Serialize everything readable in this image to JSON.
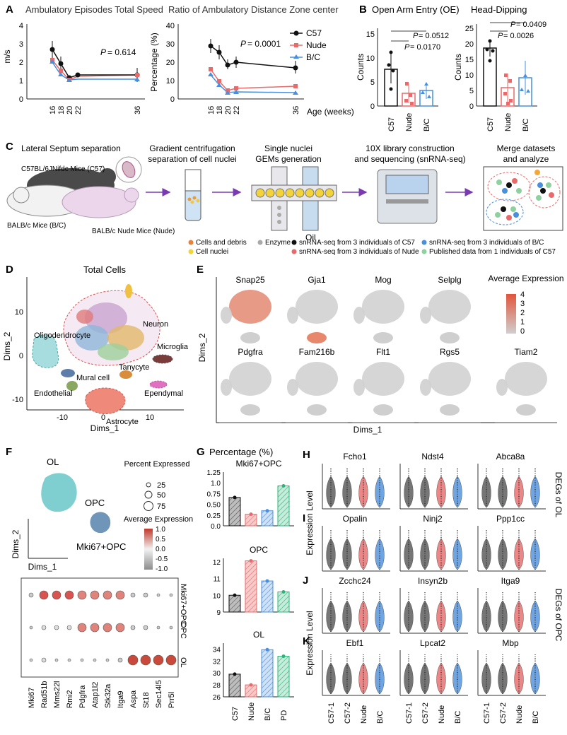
{
  "panels": {
    "A": {
      "letter": "A",
      "speed": {
        "title": "Ambulatory Episodes Total Speed",
        "ylabel": "m/s",
        "y_ticks": [
          "0",
          "1",
          "2",
          "3",
          "4"
        ],
        "x_ticks": [
          "16",
          "18",
          "20",
          "22",
          "36"
        ],
        "pvalue": "= 0.614"
      },
      "ratio": {
        "title": "Ratio of Ambulatory Distance Zone center",
        "ylabel": "Percentage (%)",
        "y_ticks": [
          "0",
          "10",
          "20",
          "30",
          "40"
        ],
        "x_ticks": [
          "16",
          "18",
          "20",
          "22",
          "36"
        ],
        "xlabel": "Age (weeks)",
        "pvalue": "= 0.0001"
      },
      "legend": [
        "C57",
        "Nude",
        "B/C"
      ],
      "p_letter": "P"
    },
    "B": {
      "letter": "B",
      "oe": {
        "title": "Open Arm Entry (OE)",
        "ylabel": "Counts",
        "y_ticks": [
          "0",
          "5",
          "10",
          "15"
        ],
        "categories": [
          "C57",
          "Nude",
          "B/C"
        ],
        "p1": "= 0.0512",
        "p2": "= 0.0170"
      },
      "hd": {
        "title": "Head-Dipping",
        "ylabel": "Counts",
        "y_ticks": [
          "0",
          "5",
          "10",
          "15",
          "20",
          "25"
        ],
        "categories": [
          "C57",
          "Nude",
          "B/C"
        ],
        "p1": "= 0.0409",
        "p2": "= 0.0026"
      }
    },
    "C": {
      "letter": "C",
      "steps": [
        "Lateral Septum separation",
        "Gradient centrifugation",
        "separation of cell nuclei",
        "Single nuclei",
        "GEMs generation",
        "10X library construction",
        "and sequencing (snRNA-seq)",
        "Merge datasets",
        "and analyze"
      ],
      "mice": [
        "C57BL/6JNifdc Mice (C57)",
        "BALB/c Mice (B/C)",
        "BALB/c Nude Mice (Nude)"
      ],
      "oil": "Oil",
      "legend": [
        "Cells and debris",
        "Cell nuclei",
        "Enzyme",
        "snRNA-seq from 3 individuals of C57",
        "snRNA-seq from 3 individuals of Nude",
        "snRNA-seq from 3 individuals of B/C",
        "Published data from 1 individuals of C57"
      ]
    },
    "D": {
      "letter": "D",
      "title": "Total Cells",
      "xlabel": "Dims_1",
      "ylabel": "Dims_2",
      "x_ticks": [
        "-10",
        "0",
        "10"
      ],
      "y_ticks": [
        "10",
        "0",
        "-10"
      ],
      "clusters": [
        "Neuron",
        "Oligodendrocyte",
        "Microglia",
        "Tanycyte",
        "Ependymal",
        "Mural cell",
        "Endothelial",
        "Astrocyte"
      ]
    },
    "E": {
      "letter": "E",
      "genes": [
        "Snap25",
        "Gja1",
        "Mog",
        "Selplg",
        "Pdgfra",
        "Fam216b",
        "Flt1",
        "Rgs5",
        "Tiam2"
      ],
      "legend_title": "Average Expression",
      "legend_ticks": [
        "4",
        "3",
        "2",
        "1",
        "0"
      ],
      "xlabel": "Dims_1",
      "ylabel": "Dims_2"
    },
    "F": {
      "letter": "F",
      "umap_labels": [
        "OL",
        "OPC",
        "Mki67+OPC"
      ],
      "xlabel": "Dims_1",
      "ylabel": "Dims_2",
      "percent_title": "Percent Expressed",
      "percent_ticks": [
        "25",
        "50",
        "75"
      ],
      "avg_title": "Average Expression",
      "avg_ticks": [
        "1.0",
        "0.5",
        "0.0",
        "-0.5",
        "-1.0"
      ],
      "genes": [
        "Mki67",
        "Rad51b",
        "Mms22l",
        "Rmi2",
        "Pdgfra",
        "Atap1l2",
        "Stk32a",
        "Itga9",
        "Aspa",
        "St18",
        "Sec14l5",
        "Prr5l"
      ],
      "rows": [
        "Mki67+OPC",
        "OPC",
        "OL"
      ]
    },
    "G": {
      "letter": "G",
      "title": "Percentage (%)",
      "categories": [
        "C57",
        "Nude",
        "B/C",
        "PD"
      ],
      "subplots": [
        {
          "title": "Mki67+OPC",
          "y_ticks": [
            "0.0",
            "0.25",
            "0.50",
            "0.75",
            "1.0",
            "1.25"
          ],
          "ymin": 0.0,
          "ymax": 1.25,
          "values": [
            0.66,
            0.27,
            0.35,
            0.93
          ]
        },
        {
          "title": "OPC",
          "y_ticks": [
            "9",
            "10",
            "11",
            "12"
          ],
          "ymin": 9,
          "ymax": 12.2,
          "values": [
            10.0,
            12.05,
            10.85,
            10.2
          ]
        },
        {
          "title": "OL",
          "y_ticks": [
            "26",
            "28",
            "30",
            "32",
            "34"
          ],
          "ymin": 26,
          "ymax": 35,
          "values": [
            29.8,
            28.0,
            33.9,
            32.8
          ]
        }
      ]
    },
    "H": {
      "letter": "H",
      "genes": [
        "Fcho1",
        "Ndst4",
        "Abca8a"
      ],
      "side_label": "DEGs of OL"
    },
    "I": {
      "letter": "I",
      "genes": [
        "Opalin",
        "Ninj2",
        "Ppp1cc"
      ]
    },
    "J": {
      "letter": "J",
      "genes": [
        "Zcchc24",
        "Insyn2b",
        "Itga9"
      ],
      "side_label": "DEGs of OPC"
    },
    "K": {
      "letter": "K",
      "genes": [
        "Ebf1",
        "Lpcat2",
        "Mbp"
      ]
    },
    "violin": {
      "ylabel": "Expression Level",
      "categories": [
        "C57-1",
        "C57-2",
        "Nude",
        "B/C"
      ]
    }
  },
  "colors": {
    "c57": "#111111",
    "nude": "#e86a6a",
    "bc": "#4a8fdc",
    "pd": "#2bb57a",
    "arrow": "#7a3bb0",
    "olcluster": "#6ec6c8"
  }
}
